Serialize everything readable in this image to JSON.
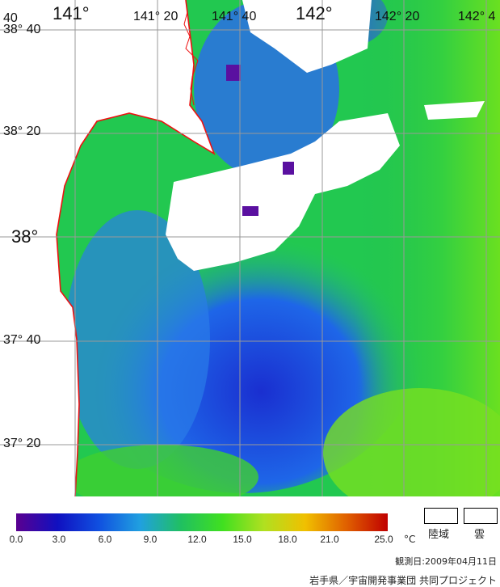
{
  "map": {
    "lat_labels": [
      "38° 40",
      "38° 20",
      "38°",
      "37° 40",
      "37° 20"
    ],
    "lon_labels": [
      "141°",
      "141° 20",
      "141° 40",
      "142°",
      "142° 20",
      "142° 4"
    ],
    "corner_label": "40"
  },
  "legend": {
    "ticks": [
      "0.0",
      "3.0",
      "6.0",
      "9.0",
      "12.0",
      "15.0",
      "18.0",
      "21.0",
      "25.0"
    ],
    "unit": "°C",
    "land_label": "陸域",
    "cloud_label": "雲",
    "date_text": "観測日:2009年04月11日",
    "credit_text": "岩手県／宇宙開発事業団  共同プロジェクト",
    "colors": [
      "#5a0090",
      "#1010c0",
      "#1050e0",
      "#20a0e0",
      "#20c060",
      "#40e020",
      "#b0e020",
      "#f0c000",
      "#e06000",
      "#c00000"
    ]
  }
}
